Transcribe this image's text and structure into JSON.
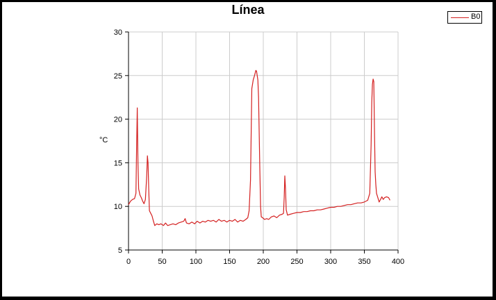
{
  "chart_data": {
    "type": "line",
    "title": "Línea",
    "xlabel": "",
    "ylabel": "°C",
    "xlim": [
      0,
      400
    ],
    "ylim": [
      5,
      30
    ],
    "grid": true,
    "legend_position": "top-right",
    "x_ticks": [
      "0",
      "50",
      "100",
      "150",
      "200",
      "250",
      "300",
      "350",
      "400"
    ],
    "y_ticks": [
      "5",
      "10",
      "15",
      "20",
      "25",
      "30"
    ],
    "series": [
      {
        "name": "B0",
        "color": "#d42020",
        "points": [
          [
            0,
            10.2
          ],
          [
            3,
            10.6
          ],
          [
            6,
            10.8
          ],
          [
            9,
            10.9
          ],
          [
            11,
            11.5
          ],
          [
            12,
            16.5
          ],
          [
            13,
            21.3
          ],
          [
            14,
            15.0
          ],
          [
            15,
            12.0
          ],
          [
            17,
            11.3
          ],
          [
            19,
            11.0
          ],
          [
            21,
            10.6
          ],
          [
            23,
            10.3
          ],
          [
            25,
            10.8
          ],
          [
            27,
            13.5
          ],
          [
            28,
            15.8
          ],
          [
            29,
            15.0
          ],
          [
            30,
            12.0
          ],
          [
            31,
            9.5
          ],
          [
            33,
            9.2
          ],
          [
            35,
            8.9
          ],
          [
            37,
            8.3
          ],
          [
            39,
            7.8
          ],
          [
            42,
            8.0
          ],
          [
            45,
            7.9
          ],
          [
            48,
            8.0
          ],
          [
            52,
            7.8
          ],
          [
            55,
            8.1
          ],
          [
            58,
            7.8
          ],
          [
            62,
            7.9
          ],
          [
            66,
            8.0
          ],
          [
            70,
            7.9
          ],
          [
            74,
            8.1
          ],
          [
            78,
            8.2
          ],
          [
            82,
            8.3
          ],
          [
            84,
            8.6
          ],
          [
            86,
            8.1
          ],
          [
            90,
            8.0
          ],
          [
            94,
            8.2
          ],
          [
            98,
            8.0
          ],
          [
            102,
            8.3
          ],
          [
            106,
            8.1
          ],
          [
            110,
            8.3
          ],
          [
            114,
            8.2
          ],
          [
            118,
            8.4
          ],
          [
            122,
            8.3
          ],
          [
            126,
            8.4
          ],
          [
            130,
            8.2
          ],
          [
            134,
            8.5
          ],
          [
            138,
            8.3
          ],
          [
            142,
            8.4
          ],
          [
            146,
            8.2
          ],
          [
            150,
            8.4
          ],
          [
            154,
            8.3
          ],
          [
            158,
            8.5
          ],
          [
            162,
            8.2
          ],
          [
            166,
            8.4
          ],
          [
            170,
            8.3
          ],
          [
            174,
            8.5
          ],
          [
            177,
            8.7
          ],
          [
            179,
            9.5
          ],
          [
            181,
            13.0
          ],
          [
            182,
            18.0
          ],
          [
            183,
            23.5
          ],
          [
            185,
            24.5
          ],
          [
            187,
            25.0
          ],
          [
            189,
            25.6
          ],
          [
            190,
            25.5
          ],
          [
            192,
            24.5
          ],
          [
            193,
            22.5
          ],
          [
            194,
            18.0
          ],
          [
            195,
            14.0
          ],
          [
            196,
            10.0
          ],
          [
            197,
            8.8
          ],
          [
            199,
            8.7
          ],
          [
            202,
            8.5
          ],
          [
            205,
            8.6
          ],
          [
            208,
            8.5
          ],
          [
            212,
            8.8
          ],
          [
            216,
            8.9
          ],
          [
            220,
            8.7
          ],
          [
            224,
            9.0
          ],
          [
            228,
            9.1
          ],
          [
            230,
            9.2
          ],
          [
            231,
            11.0
          ],
          [
            232,
            13.5
          ],
          [
            233,
            12.0
          ],
          [
            234,
            9.6
          ],
          [
            236,
            9.0
          ],
          [
            240,
            9.1
          ],
          [
            245,
            9.2
          ],
          [
            250,
            9.3
          ],
          [
            255,
            9.3
          ],
          [
            260,
            9.4
          ],
          [
            265,
            9.4
          ],
          [
            270,
            9.5
          ],
          [
            275,
            9.5
          ],
          [
            280,
            9.6
          ],
          [
            285,
            9.6
          ],
          [
            290,
            9.7
          ],
          [
            295,
            9.8
          ],
          [
            300,
            9.9
          ],
          [
            305,
            9.9
          ],
          [
            310,
            10.0
          ],
          [
            315,
            10.0
          ],
          [
            320,
            10.1
          ],
          [
            325,
            10.2
          ],
          [
            330,
            10.2
          ],
          [
            335,
            10.3
          ],
          [
            340,
            10.4
          ],
          [
            345,
            10.4
          ],
          [
            350,
            10.5
          ],
          [
            355,
            10.7
          ],
          [
            358,
            11.5
          ],
          [
            360,
            17.0
          ],
          [
            361,
            22.0
          ],
          [
            362,
            24.0
          ],
          [
            363,
            24.6
          ],
          [
            364,
            24.3
          ],
          [
            365,
            19.0
          ],
          [
            366,
            14.0
          ],
          [
            367,
            12.5
          ],
          [
            368,
            11.5
          ],
          [
            370,
            11.0
          ],
          [
            372,
            10.5
          ],
          [
            374,
            10.8
          ],
          [
            376,
            11.1
          ],
          [
            378,
            10.8
          ],
          [
            380,
            11.0
          ],
          [
            383,
            11.1
          ],
          [
            386,
            11.0
          ],
          [
            388,
            10.7
          ]
        ]
      }
    ]
  }
}
